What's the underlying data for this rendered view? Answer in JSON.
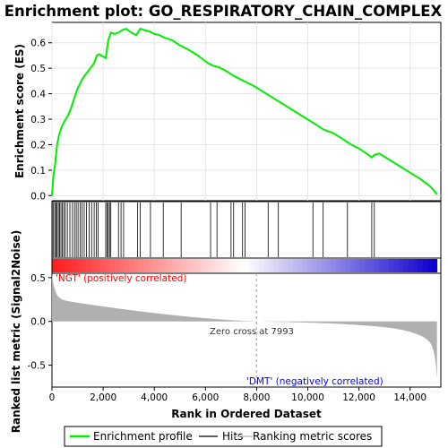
{
  "chart_data": {
    "type": "line",
    "title": "Enrichment plot: GO_RESPIRATORY_CHAIN_COMPLEX",
    "xlabel": "Rank in Ordered Dataset",
    "ylabel_top": "Enrichment score (ES)",
    "ylabel_bottom": "Ranked list metric (Signal2Noise)",
    "x_range": [
      0,
      15200
    ],
    "x_ticks": [
      0,
      2000,
      4000,
      6000,
      8000,
      10000,
      12000,
      14000
    ],
    "x_tick_labels": [
      "0",
      "2,000",
      "4,000",
      "6,000",
      "8,000",
      "10,000",
      "12,000",
      "14,000"
    ],
    "es_ylim": [
      -0.02,
      0.68
    ],
    "es_ticks": [
      0.0,
      0.1,
      0.2,
      0.3,
      0.4,
      0.5,
      0.6
    ],
    "es_tick_labels": [
      "0.0",
      "0.1",
      "0.2",
      "0.3",
      "0.4",
      "0.5",
      "0.6"
    ],
    "metric_ylim": [
      -0.75,
      0.55
    ],
    "metric_ticks": [
      0.5,
      0.0,
      -0.5
    ],
    "metric_tick_labels": [
      "0.5",
      "0.0",
      "-0.5"
    ],
    "enrichment_profile": {
      "name": "Enrichment profile",
      "color": "#00ee00",
      "x": [
        0,
        60,
        120,
        200,
        280,
        380,
        480,
        600,
        700,
        800,
        900,
        1000,
        1100,
        1200,
        1350,
        1500,
        1650,
        1750,
        1850,
        2100,
        2200,
        2300,
        2450,
        2600,
        2750,
        2900,
        3100,
        3300,
        3450,
        3600,
        3800,
        4000,
        4200,
        4400,
        4700,
        5000,
        5300,
        5700,
        6100,
        6300,
        6500,
        6800,
        7100,
        7500,
        7900,
        8300,
        8700,
        9100,
        9500,
        9900,
        10300,
        10600,
        11000,
        11400,
        11700,
        12000,
        12300,
        12500,
        12600,
        12800,
        13200,
        13600,
        14000,
        14400,
        14800,
        15050
      ],
      "y": [
        0.0,
        0.08,
        0.12,
        0.2,
        0.24,
        0.27,
        0.29,
        0.31,
        0.33,
        0.36,
        0.39,
        0.42,
        0.44,
        0.46,
        0.48,
        0.5,
        0.52,
        0.55,
        0.555,
        0.54,
        0.61,
        0.64,
        0.635,
        0.64,
        0.65,
        0.655,
        0.64,
        0.63,
        0.655,
        0.65,
        0.645,
        0.635,
        0.63,
        0.62,
        0.61,
        0.59,
        0.575,
        0.55,
        0.52,
        0.51,
        0.505,
        0.49,
        0.47,
        0.45,
        0.43,
        0.405,
        0.38,
        0.355,
        0.33,
        0.305,
        0.28,
        0.26,
        0.245,
        0.22,
        0.2,
        0.185,
        0.165,
        0.15,
        0.16,
        0.165,
        0.14,
        0.115,
        0.09,
        0.065,
        0.035,
        0.005
      ]
    },
    "hits": [
      10,
      60,
      110,
      160,
      200,
      250,
      300,
      350,
      400,
      460,
      520,
      600,
      700,
      800,
      880,
      950,
      1020,
      1100,
      1180,
      1260,
      1350,
      1450,
      1550,
      1650,
      1730,
      1800,
      2100,
      2150,
      2200,
      2250,
      2300,
      2600,
      2700,
      2800,
      3350,
      3450,
      3850,
      4350,
      5050,
      6200,
      6450,
      7000,
      7100,
      7450,
      7550,
      8450,
      8850,
      10200,
      10600,
      11550,
      12500,
      12600
    ],
    "zero_cross_label": "Zero cross at 7993",
    "zero_cross_x": 7993,
    "pos_label": "'NGT' (positively correlated)",
    "neg_label": "'DMT' (negatively correlated)",
    "legend": [
      "Enrichment profile",
      "Hits",
      "Ranking metric scores"
    ],
    "colors": {
      "es_line": "#00ee00",
      "metric_fill": "#b0b0b0",
      "pos_text": "#ff0000",
      "neg_text": "#0000ff"
    }
  }
}
